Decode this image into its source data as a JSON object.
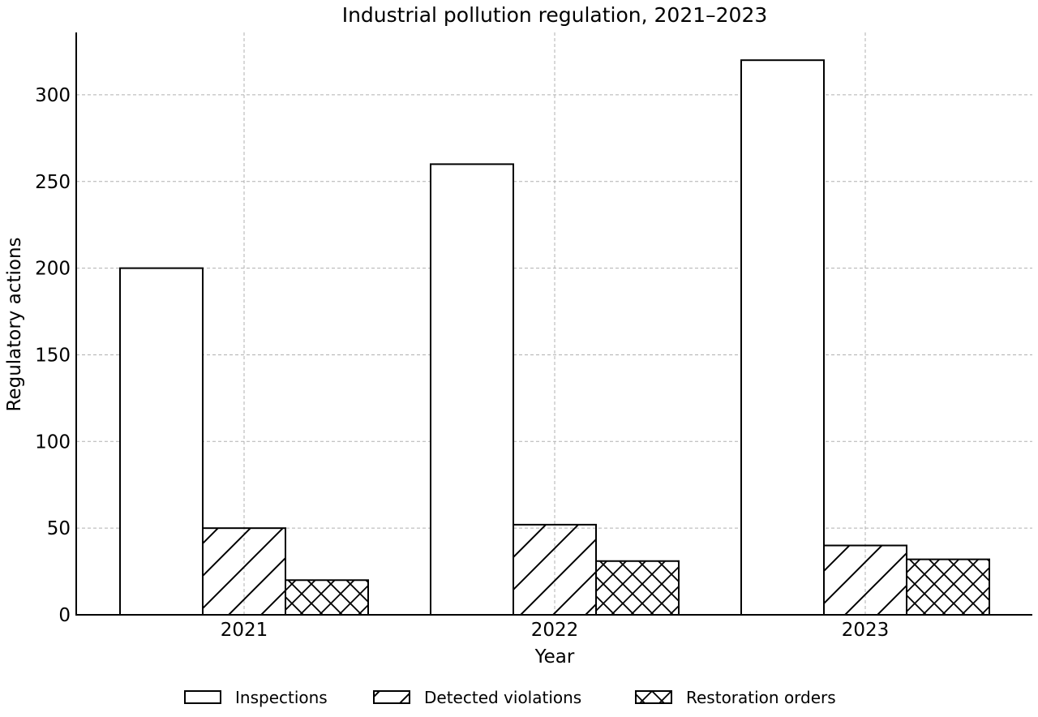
{
  "chart_data": {
    "type": "bar",
    "title": "Industrial pollution regulation, 2021–2023",
    "xlabel": "Year",
    "ylabel": "Regulatory actions",
    "categories": [
      "2021",
      "2022",
      "2023"
    ],
    "series": [
      {
        "name": "Inspections",
        "values": [
          200,
          260,
          320
        ],
        "pattern": "none"
      },
      {
        "name": "Detected violations",
        "values": [
          50,
          52,
          40
        ],
        "pattern": "diagonal"
      },
      {
        "name": "Restoration orders",
        "values": [
          20,
          31,
          32
        ],
        "pattern": "crosshatch"
      }
    ],
    "ylim": [
      0,
      336
    ],
    "yticks": [
      0,
      50,
      100,
      150,
      200,
      250,
      300
    ],
    "grid": true,
    "legend_position": "bottom-center",
    "colors": {
      "bar_fill": "#ffffff",
      "bar_edge": "#000000",
      "grid": "#b0b0b0"
    }
  }
}
